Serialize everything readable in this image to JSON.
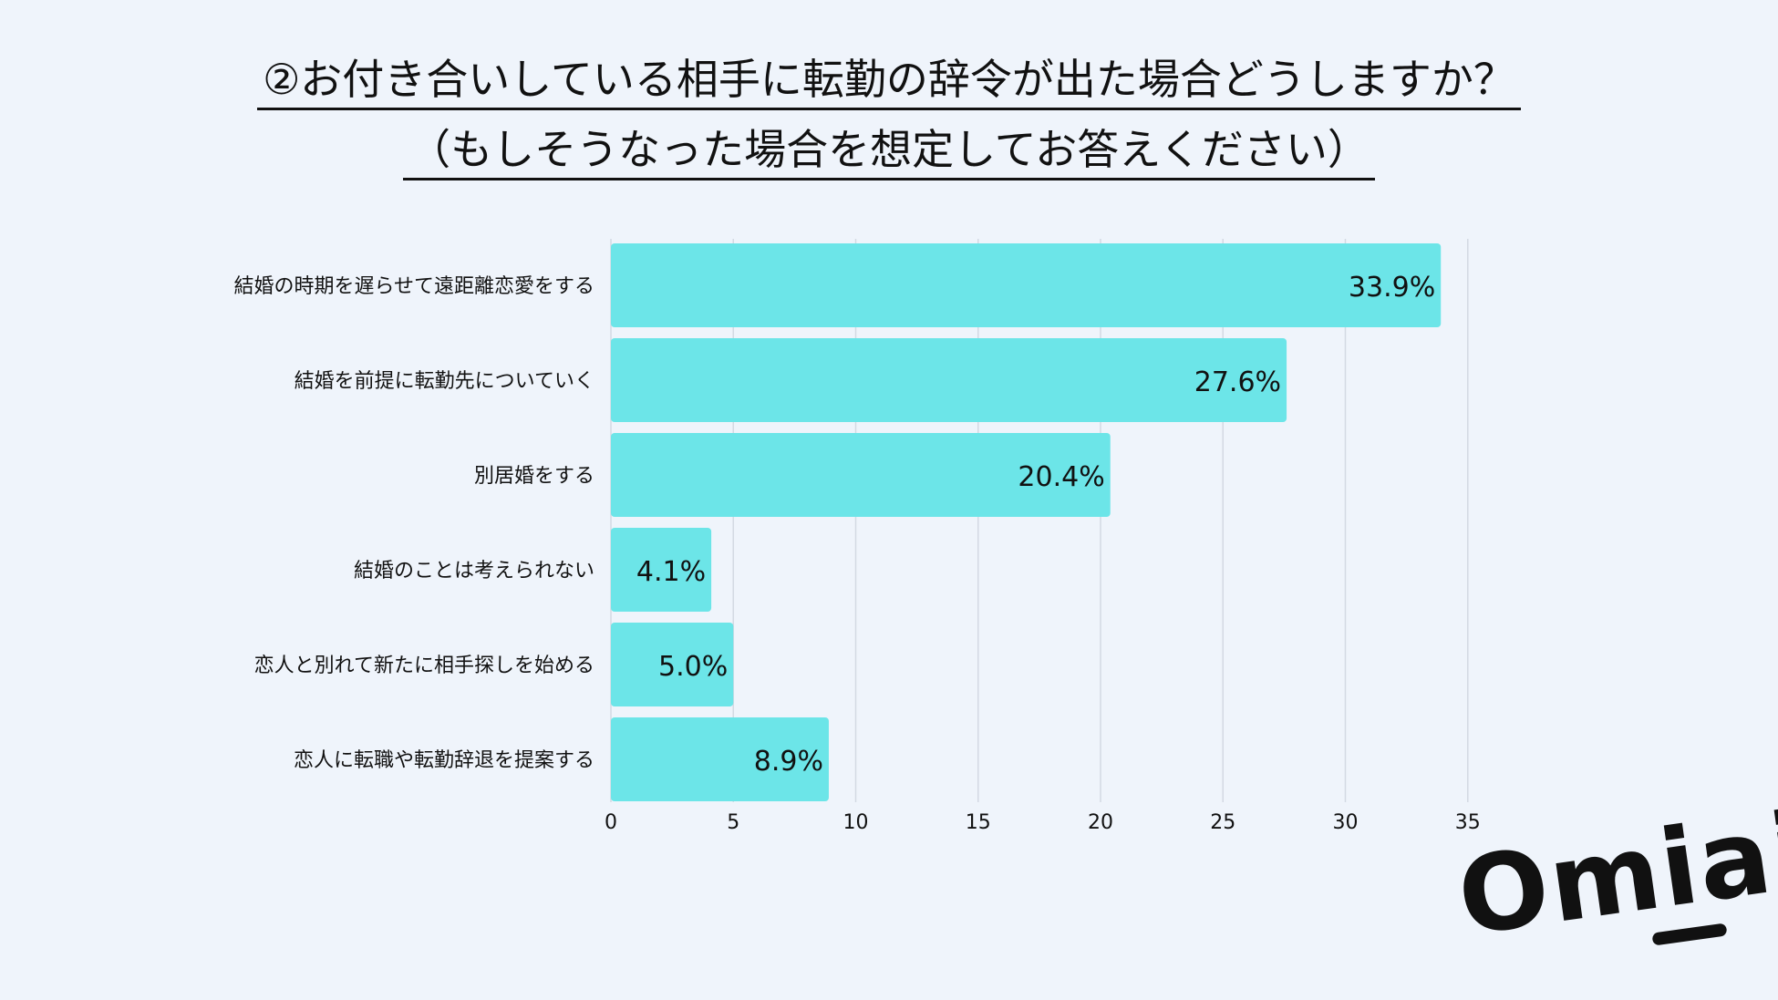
{
  "title": {
    "line1": "②お付き合いしている相手に転勤の辞令が出た場合どうしますか？",
    "line2": "（もしそうなった場合を想定してお答えください）"
  },
  "logo": {
    "text": "Omiai"
  },
  "chart_data": {
    "type": "bar",
    "orientation": "horizontal",
    "categories": [
      "結婚の時期を遅らせて遠距離恋愛をする",
      "結婚を前提に転勤先についていく",
      "別居婚をする",
      "結婚のことは考えられない",
      "恋人と別れて新たに相手探しを始める",
      "恋人に転職や転勤辞退を提案する"
    ],
    "values": [
      33.9,
      27.6,
      20.4,
      4.1,
      5.0,
      8.9
    ],
    "value_labels": [
      "33.9%",
      "27.6%",
      "20.4%",
      "4.1%",
      "5.0%",
      "8.9%"
    ],
    "xticks": [
      "0",
      "5",
      "10",
      "15",
      "20",
      "25",
      "30",
      "35"
    ],
    "xlim": [
      0,
      35
    ],
    "grid": true,
    "bar_color": "#6ce5e8",
    "grid_color": "#d3d9e3"
  }
}
